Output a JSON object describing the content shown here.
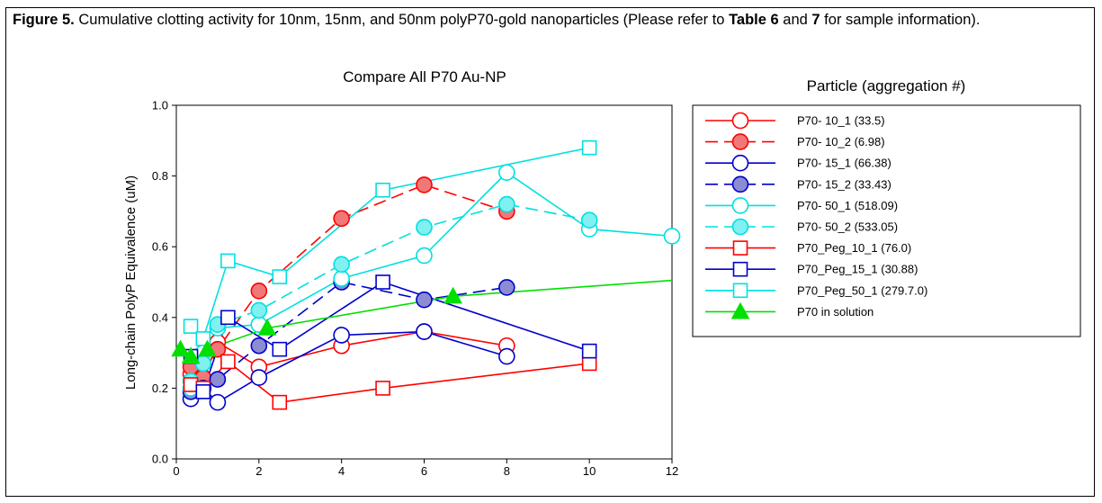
{
  "figure": {
    "caption_label": "Figure 5.",
    "caption_text_1": " Cumulative clotting activity for 10nm, 15nm, and 50nm polyP70-gold nanoparticles (Please refer to ",
    "caption_ref_1": "Table 6",
    "caption_and": " and ",
    "caption_ref_2": "7",
    "caption_text_2": " for sample information)."
  },
  "chart_data": {
    "type": "line",
    "title": "Compare All P70 Au-NP",
    "xlabel": "",
    "ylabel": "Long-chain PolyP Equivalence (uM)",
    "xlim": [
      0,
      12
    ],
    "ylim": [
      0,
      1.0
    ],
    "x_ticks": [
      "0",
      "2",
      "4",
      "6",
      "8",
      "10",
      "12"
    ],
    "y_ticks": [
      "0.0",
      "0.2",
      "0.4",
      "0.6",
      "0.8",
      "1.0"
    ],
    "x_tick_values": [
      0,
      2,
      4,
      6,
      8,
      10,
      12
    ],
    "y_tick_values": [
      0,
      0.2,
      0.4,
      0.6,
      0.8,
      1.0
    ],
    "legend_title": "Particle (aggregation #)",
    "legend_position": "right",
    "series": [
      {
        "name": "P70- 10_1 (33.5)",
        "color": "#ff0000",
        "marker": "circle",
        "filled": false,
        "dashed": false,
        "x": [
          0.35,
          0.65,
          1.0,
          2.0,
          4.0,
          6.0,
          8.0
        ],
        "y": [
          0.24,
          0.22,
          0.33,
          0.26,
          0.32,
          0.36,
          0.32
        ]
      },
      {
        "name": "P70- 10_2 (6.98)",
        "color": "#ff0000",
        "fill": "#f07878",
        "marker": "circle",
        "filled": true,
        "dashed": true,
        "x": [
          0.35,
          0.65,
          1.0,
          2.0,
          4.0,
          6.0,
          8.0
        ],
        "y": [
          0.26,
          0.23,
          0.31,
          0.475,
          0.68,
          0.775,
          0.7
        ]
      },
      {
        "name": "P70- 15_1 (66.38)",
        "color": "#0000cc",
        "marker": "circle",
        "filled": false,
        "dashed": false,
        "x": [
          0.35,
          0.65,
          1.0,
          2.0,
          4.0,
          6.0,
          8.0
        ],
        "y": [
          0.17,
          0.2,
          0.16,
          0.23,
          0.35,
          0.36,
          0.29
        ]
      },
      {
        "name": "P70- 15_2 (33.43)",
        "color": "#0000cc",
        "fill": "#8c8cd2",
        "marker": "circle",
        "filled": true,
        "dashed": true,
        "x": [
          0.35,
          0.65,
          1.0,
          2.0,
          4.0,
          6.0,
          8.0
        ],
        "y": [
          0.19,
          0.2,
          0.225,
          0.32,
          0.5,
          0.45,
          0.485
        ]
      },
      {
        "name": "P70- 50_1 (518.09)",
        "color": "#00e0e0",
        "marker": "circle",
        "filled": false,
        "dashed": false,
        "x": [
          0.35,
          0.65,
          1.0,
          2.0,
          4.0,
          6.0,
          8.0,
          10.0,
          12.0
        ],
        "y": [
          0.2,
          0.3,
          0.37,
          0.38,
          0.51,
          0.575,
          0.81,
          0.65,
          0.63
        ]
      },
      {
        "name": "P70- 50_2 (533.05)",
        "color": "#00e0e0",
        "fill": "#80f0f0",
        "marker": "circle",
        "filled": true,
        "dashed": true,
        "x": [
          0.35,
          0.65,
          1.0,
          2.0,
          4.0,
          6.0,
          8.0,
          10.0
        ],
        "y": [
          0.22,
          0.27,
          0.38,
          0.42,
          0.55,
          0.655,
          0.72,
          0.675
        ]
      },
      {
        "name": "P70_Peg_10_1 (76.0)",
        "color": "#ff0000",
        "marker": "square",
        "filled": false,
        "dashed": false,
        "x": [
          0.35,
          0.65,
          1.25,
          2.5,
          5.0,
          10.0
        ],
        "y": [
          0.21,
          0.2,
          0.275,
          0.16,
          0.2,
          0.27
        ]
      },
      {
        "name": "P70_Peg_15_1 (30.88)",
        "color": "#0000cc",
        "marker": "square",
        "filled": false,
        "dashed": false,
        "x": [
          0.35,
          0.65,
          1.25,
          2.5,
          5.0,
          10.0
        ],
        "y": [
          0.29,
          0.19,
          0.4,
          0.31,
          0.5,
          0.305
        ]
      },
      {
        "name": "P70_Peg_50_1 (279.7.0)",
        "color": "#00e0e0",
        "marker": "square",
        "filled": false,
        "dashed": false,
        "x": [
          0.35,
          0.65,
          1.25,
          2.5,
          5.0,
          10.0
        ],
        "y": [
          0.375,
          0.34,
          0.56,
          0.515,
          0.76,
          0.88
        ]
      },
      {
        "name": "P70 in solution",
        "color": "#00e000",
        "marker": "triangle",
        "filled": true,
        "dashed": false,
        "x": [
          0.1,
          0.35,
          0.75,
          2.2,
          6.7,
          12.0
        ],
        "y": [
          0.31,
          0.29,
          0.31,
          0.37,
          0.46,
          0.505
        ],
        "marker_count": 5
      }
    ]
  }
}
